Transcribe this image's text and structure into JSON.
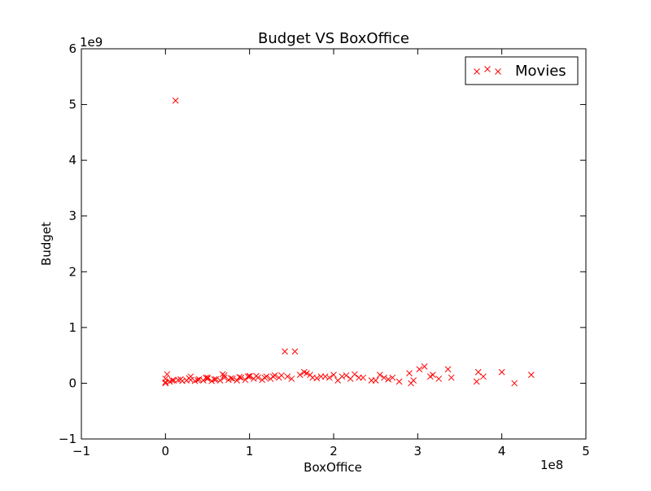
{
  "chart_data": {
    "type": "scatter",
    "title": "Budget VS BoxOffice",
    "xlabel": "BoxOffice",
    "ylabel": "Budget",
    "x_offset_label": "1e8",
    "y_offset_label": "1e9",
    "xlim": [
      -1,
      5
    ],
    "ylim": [
      -1,
      6
    ],
    "x_ticks": [
      -1,
      0,
      1,
      2,
      3,
      4,
      5
    ],
    "y_ticks": [
      -1,
      0,
      1,
      2,
      3,
      4,
      5,
      6
    ],
    "x_tick_labels": [
      "−1",
      "0",
      "1",
      "2",
      "3",
      "4",
      "5"
    ],
    "y_tick_labels": [
      "−1",
      "0",
      "1",
      "2",
      "3",
      "4",
      "5",
      "6"
    ],
    "grid": false,
    "legend_position": "top-right",
    "marker": "x",
    "series": [
      {
        "name": "Movies",
        "color": "#ff0000",
        "x": [
          0.12,
          1.42,
          1.54,
          4.35,
          4.0,
          3.72,
          3.78,
          3.36,
          3.08,
          3.02,
          2.9,
          3.18,
          3.4,
          3.7,
          4.15,
          2.95,
          2.6,
          2.55,
          2.45,
          2.3,
          2.2,
          2.1,
          2.05,
          2.0,
          1.85,
          1.75,
          1.65,
          1.6,
          1.5,
          1.45,
          1.35,
          1.3,
          1.25,
          1.2,
          1.15,
          1.1,
          1.05,
          1.0,
          0.95,
          0.9,
          0.85,
          0.8,
          0.75,
          0.7,
          0.65,
          0.6,
          0.55,
          0.5,
          0.45,
          0.4,
          0.35,
          0.3,
          0.25,
          0.2,
          0.15,
          0.1,
          0.05,
          0.0,
          0.02,
          0.08,
          0.18,
          0.28,
          0.38,
          0.48,
          0.58,
          0.68,
          0.78,
          0.88,
          0.98,
          1.08,
          1.18,
          1.28,
          1.38,
          1.68,
          1.72,
          1.95,
          2.25,
          2.65,
          2.78,
          3.15,
          3.25,
          2.92,
          2.35,
          2.15,
          1.9,
          1.8,
          2.5,
          2.7,
          0.0,
          0.0,
          0.5,
          1.0,
          0.3,
          0.7
        ],
        "y": [
          5.07,
          0.57,
          0.57,
          0.15,
          0.2,
          0.2,
          0.12,
          0.25,
          0.3,
          0.25,
          0.18,
          0.15,
          0.1,
          0.03,
          0.0,
          0.05,
          0.1,
          0.15,
          0.05,
          0.1,
          0.08,
          0.12,
          0.05,
          0.15,
          0.12,
          0.1,
          0.2,
          0.15,
          0.08,
          0.12,
          0.1,
          0.14,
          0.08,
          0.12,
          0.06,
          0.1,
          0.08,
          0.12,
          0.06,
          0.1,
          0.05,
          0.08,
          0.06,
          0.1,
          0.05,
          0.07,
          0.04,
          0.08,
          0.05,
          0.07,
          0.04,
          0.06,
          0.05,
          0.04,
          0.06,
          0.05,
          0.03,
          0.02,
          0.16,
          0.05,
          0.07,
          0.09,
          0.06,
          0.1,
          0.07,
          0.16,
          0.09,
          0.11,
          0.12,
          0.13,
          0.1,
          0.12,
          0.14,
          0.18,
          0.15,
          0.1,
          0.16,
          0.07,
          0.03,
          0.12,
          0.08,
          0.0,
          0.1,
          0.14,
          0.12,
          0.09,
          0.05,
          0.1,
          0.0,
          0.08,
          0.1,
          0.13,
          0.12,
          0.14
        ]
      }
    ]
  }
}
